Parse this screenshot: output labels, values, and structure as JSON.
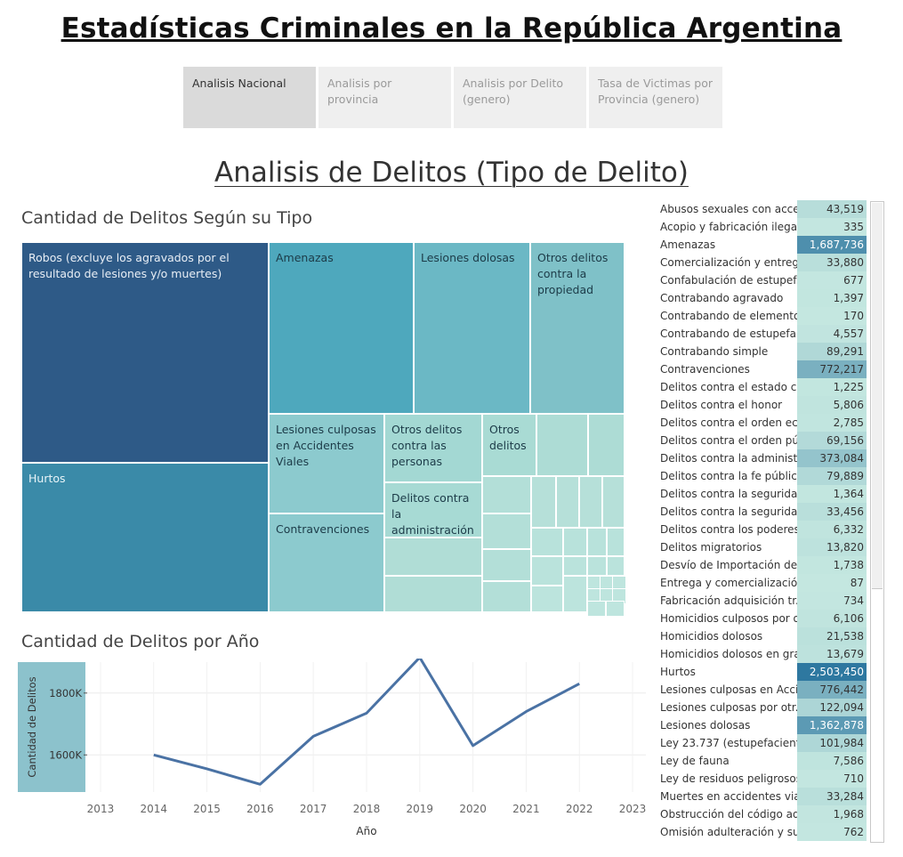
{
  "title": "Estadísticas Criminales en la República Argentina",
  "tabs": [
    {
      "label": "Analisis Nacional",
      "active": true
    },
    {
      "label": "Analisis por provincia",
      "active": false
    },
    {
      "label": "Analisis por Delito (genero)",
      "active": false
    },
    {
      "label": "Tasa de Victimas por Provincia (genero)",
      "active": false
    }
  ],
  "section_title": "Analisis de Delitos (Tipo de Delito)",
  "treemap_title": "Cantidad de Delitos Según su Tipo",
  "linechart_title": "Cantidad de Delitos por Año",
  "colors": {
    "dark": "#2e5a87",
    "mid": "#3a8aa8",
    "light": "#aadfd8"
  },
  "chart_data": [
    {
      "type": "treemap",
      "title": "Cantidad de Delitos Según su Tipo",
      "labels": [
        "Robos (excluye los agravados por el resultado de lesiones y/o muertes)",
        "Hurtos",
        "Amenazas",
        "Lesiones dolosas",
        "Otros delitos contra la propiedad",
        "Lesiones culposas en Accidentes Viales",
        "Contravenciones",
        "Otros delitos contra las personas",
        "Delitos contra la administración",
        "Otros delitos"
      ]
    },
    {
      "type": "line",
      "title": "Cantidad de Delitos por Año",
      "xlabel": "Año",
      "ylabel": "Cantidad de Delitos",
      "x_ticks": [
        "2013",
        "2014",
        "2015",
        "2016",
        "2017",
        "2018",
        "2019",
        "2020",
        "2021",
        "2022",
        "2023"
      ],
      "y_ticks": [
        "1600K",
        "1800K"
      ],
      "ylim": [
        1480000,
        1900000
      ],
      "x": [
        2014,
        2015,
        2016,
        2017,
        2018,
        2019,
        2020,
        2021,
        2022
      ],
      "values": [
        1600000,
        1555000,
        1505000,
        1660000,
        1735000,
        1915000,
        1630000,
        1740000,
        1830000
      ]
    },
    {
      "type": "table",
      "rows": [
        {
          "label": "Abusos sexuales con acce..",
          "value": "43,519",
          "n": 43519
        },
        {
          "label": "Acopio y fabricación ilegal..",
          "value": "335",
          "n": 335
        },
        {
          "label": "Amenazas",
          "value": "1,687,736",
          "n": 1687736
        },
        {
          "label": "Comercialización y entreg..",
          "value": "33,880",
          "n": 33880
        },
        {
          "label": "Confabulación de estupef..",
          "value": "677",
          "n": 677
        },
        {
          "label": "Contrabando agravado",
          "value": "1,397",
          "n": 1397
        },
        {
          "label": "Contrabando de elemento..",
          "value": "170",
          "n": 170
        },
        {
          "label": "Contrabando de estupefa..",
          "value": "4,557",
          "n": 4557
        },
        {
          "label": "Contrabando simple",
          "value": "89,291",
          "n": 89291
        },
        {
          "label": "Contravenciones",
          "value": "772,217",
          "n": 772217
        },
        {
          "label": "Delitos contra el estado ci..",
          "value": "1,225",
          "n": 1225
        },
        {
          "label": "Delitos contra el honor",
          "value": "5,806",
          "n": 5806
        },
        {
          "label": "Delitos contra el orden ec..",
          "value": "2,785",
          "n": 2785
        },
        {
          "label": "Delitos contra el orden pú..",
          "value": "69,156",
          "n": 69156
        },
        {
          "label": "Delitos contra la administ..",
          "value": "373,084",
          "n": 373084
        },
        {
          "label": "Delitos contra la fe pública",
          "value": "79,889",
          "n": 79889
        },
        {
          "label": "Delitos contra la segurida..",
          "value": "1,364",
          "n": 1364
        },
        {
          "label": "Delitos contra la segurida..",
          "value": "33,456",
          "n": 33456
        },
        {
          "label": "Delitos contra los poderes..",
          "value": "6,332",
          "n": 6332
        },
        {
          "label": "Delitos migratorios",
          "value": "13,820",
          "n": 13820
        },
        {
          "label": "Desvío de Importación de ..",
          "value": "1,738",
          "n": 1738
        },
        {
          "label": "Entrega y comercializació..",
          "value": "87",
          "n": 87
        },
        {
          "label": "Fabricación adquisición tr..",
          "value": "734",
          "n": 734
        },
        {
          "label": "Homicidios culposos por o..",
          "value": "6,106",
          "n": 6106
        },
        {
          "label": "Homicidios dolosos",
          "value": "21,538",
          "n": 21538
        },
        {
          "label": "Homicidios dolosos en gra..",
          "value": "13,679",
          "n": 13679
        },
        {
          "label": "Hurtos",
          "value": "2,503,450",
          "n": 2503450
        },
        {
          "label": "Lesiones culposas en Acci..",
          "value": "776,442",
          "n": 776442
        },
        {
          "label": "Lesiones culposas por otr..",
          "value": "122,094",
          "n": 122094
        },
        {
          "label": "Lesiones dolosas",
          "value": "1,362,878",
          "n": 1362878
        },
        {
          "label": "Ley 23.737 (estupefacient..",
          "value": "101,984",
          "n": 101984
        },
        {
          "label": "Ley de fauna",
          "value": "7,586",
          "n": 7586
        },
        {
          "label": "Ley de residuos peligrosos",
          "value": "710",
          "n": 710
        },
        {
          "label": "Muertes en accidentes via..",
          "value": "33,284",
          "n": 33284
        },
        {
          "label": "Obstrucción del código ad..",
          "value": "1,968",
          "n": 1968
        },
        {
          "label": "Omisión adulteración y su..",
          "value": "762",
          "n": 762
        }
      ]
    }
  ]
}
